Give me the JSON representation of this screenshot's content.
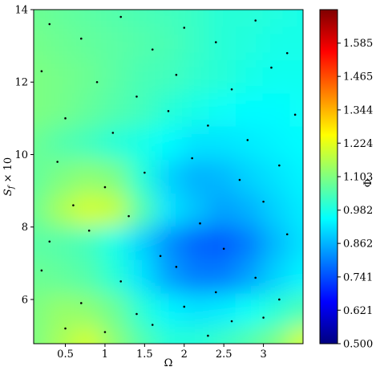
{
  "chart_data": {
    "type": "contour",
    "xlabel": "Ω",
    "ylabel": {
      "base": "S",
      "sub": "f",
      "rest": " × 10"
    },
    "colorbar_label": "Φ",
    "xlim": [
      0.1,
      3.5
    ],
    "xticks": [
      0.5,
      1.0,
      1.5,
      2.0,
      2.5,
      3.0
    ],
    "ylim": [
      4.78,
      14
    ],
    "yticks": [
      6,
      8,
      10,
      12,
      14
    ],
    "clim": [
      0.5,
      1.706
    ],
    "cticks": [
      {
        "value": 0.5,
        "label": "0.500"
      },
      0.621,
      0.741,
      0.862,
      0.982,
      1.103,
      1.224,
      1.344,
      1.465,
      1.585
    ],
    "colormap": "jet",
    "grid_x": [
      0.1,
      0.44,
      0.78,
      1.12,
      1.46,
      1.8,
      2.14,
      2.48,
      2.82,
      3.16,
      3.5
    ],
    "grid_y": [
      4.8,
      5.72,
      6.64,
      7.56,
      8.48,
      9.4,
      10.32,
      11.24,
      12.16,
      13.08,
      14
    ],
    "z": [
      [
        1.1,
        1.15,
        1.2,
        1.12,
        1.05,
        1.0,
        1.0,
        1.02,
        1.05,
        1.1,
        1.2
      ],
      [
        1.1,
        1.13,
        1.12,
        1.08,
        1.0,
        0.94,
        0.92,
        0.93,
        0.96,
        1.0,
        1.04
      ],
      [
        1.08,
        1.07,
        1.05,
        1.0,
        0.92,
        0.84,
        0.8,
        0.8,
        0.84,
        0.9,
        0.94
      ],
      [
        1.06,
        1.05,
        1.03,
        0.98,
        0.9,
        0.82,
        0.77,
        0.76,
        0.8,
        0.87,
        0.92
      ],
      [
        1.08,
        1.15,
        1.2,
        1.18,
        1.05,
        0.92,
        0.88,
        0.84,
        0.86,
        0.9,
        0.93
      ],
      [
        1.07,
        1.1,
        1.12,
        1.1,
        1.0,
        0.9,
        0.86,
        0.87,
        0.9,
        0.92,
        0.94
      ],
      [
        1.08,
        1.05,
        1.03,
        1.0,
        0.98,
        0.95,
        0.92,
        0.92,
        0.93,
        0.94,
        0.95
      ],
      [
        1.1,
        1.09,
        1.07,
        1.05,
        1.03,
        1.0,
        0.98,
        0.96,
        0.95,
        0.95,
        0.96
      ],
      [
        1.1,
        1.09,
        1.08,
        1.06,
        1.04,
        1.03,
        1.01,
        1.0,
        0.98,
        0.97,
        0.97
      ],
      [
        1.09,
        1.08,
        1.07,
        1.06,
        1.05,
        1.04,
        1.02,
        1.0,
        0.99,
        0.98,
        0.98
      ],
      [
        1.08,
        1.07,
        1.06,
        1.05,
        1.04,
        1.03,
        1.02,
        1.0,
        1.0,
        0.99,
        0.98
      ]
    ],
    "points": {
      "color": "#000000",
      "x": [
        0.3,
        0.7,
        1.2,
        1.6,
        2.0,
        2.4,
        2.9,
        3.3,
        0.2,
        0.9,
        1.4,
        1.9,
        2.6,
        3.1,
        0.5,
        1.1,
        1.8,
        2.3,
        2.8,
        3.4,
        0.4,
        1.0,
        1.5,
        2.1,
        2.7,
        3.2,
        0.6,
        1.3,
        2.2,
        3.0,
        0.3,
        0.8,
        1.7,
        2.5,
        3.3,
        0.2,
        1.2,
        1.9,
        2.4,
        2.9,
        0.7,
        1.4,
        2.0,
        2.6,
        3.2,
        0.5,
        1.0,
        1.6,
        2.3,
        3.0
      ],
      "y": [
        13.6,
        13.2,
        13.8,
        12.9,
        13.5,
        13.1,
        13.7,
        12.8,
        12.3,
        12.0,
        11.6,
        12.2,
        11.8,
        12.4,
        11.0,
        10.6,
        11.2,
        10.8,
        10.4,
        11.1,
        9.8,
        9.1,
        9.5,
        9.9,
        9.3,
        9.7,
        8.6,
        8.3,
        8.1,
        8.7,
        7.6,
        7.9,
        7.2,
        7.4,
        7.8,
        6.8,
        6.5,
        6.9,
        6.2,
        6.6,
        5.9,
        5.6,
        5.8,
        5.4,
        6.0,
        5.2,
        5.1,
        5.3,
        5.0,
        5.5
      ]
    }
  }
}
